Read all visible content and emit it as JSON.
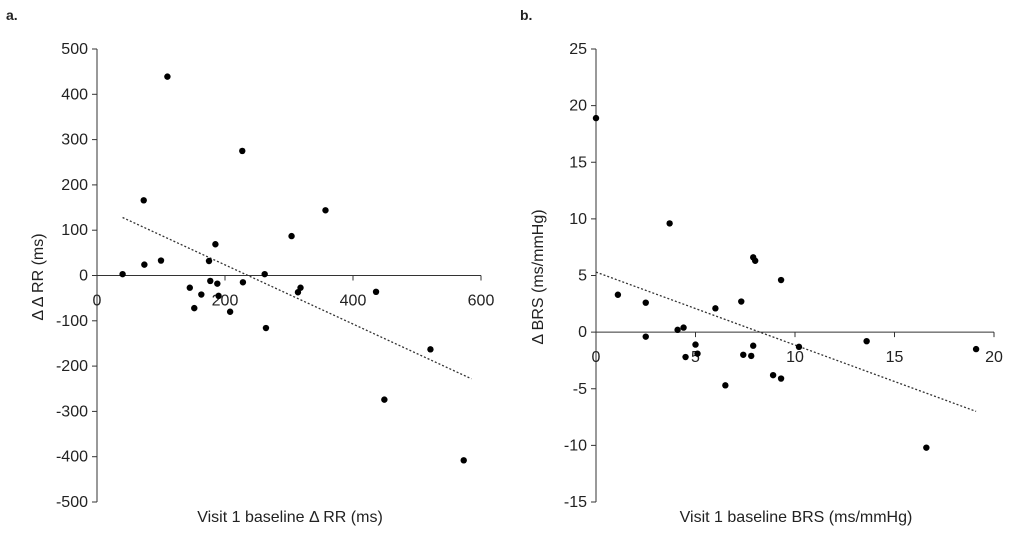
{
  "chart_data": [
    {
      "type": "scatter",
      "panel_label": "a.",
      "xlabel": "Visit 1 baseline Δ RR (ms)",
      "ylabel": "Δ Δ RR (ms)",
      "xlim": [
        0,
        600
      ],
      "ylim": [
        -500,
        500
      ],
      "xticks": [
        0,
        200,
        400,
        600
      ],
      "yticks": [
        500,
        400,
        300,
        200,
        100,
        0,
        -100,
        -200,
        -300,
        -400,
        -500
      ],
      "trendline": {
        "x": [
          40,
          585
        ],
        "y": [
          128,
          -228
        ]
      },
      "points": [
        {
          "x": 40,
          "y": 3
        },
        {
          "x": 73,
          "y": 166
        },
        {
          "x": 74,
          "y": 24
        },
        {
          "x": 100,
          "y": 33
        },
        {
          "x": 110,
          "y": 439
        },
        {
          "x": 145,
          "y": -27
        },
        {
          "x": 152,
          "y": -72
        },
        {
          "x": 163,
          "y": -42
        },
        {
          "x": 175,
          "y": 32
        },
        {
          "x": 177,
          "y": -12
        },
        {
          "x": 185,
          "y": 69
        },
        {
          "x": 188,
          "y": -18
        },
        {
          "x": 190,
          "y": -45
        },
        {
          "x": 208,
          "y": -80
        },
        {
          "x": 227,
          "y": 275
        },
        {
          "x": 228,
          "y": -15
        },
        {
          "x": 262,
          "y": 3
        },
        {
          "x": 264,
          "y": -116
        },
        {
          "x": 304,
          "y": 87
        },
        {
          "x": 314,
          "y": -37
        },
        {
          "x": 318,
          "y": -27
        },
        {
          "x": 357,
          "y": 144
        },
        {
          "x": 436,
          "y": -36
        },
        {
          "x": 449,
          "y": -274
        },
        {
          "x": 521,
          "y": -163
        },
        {
          "x": 573,
          "y": -408
        }
      ]
    },
    {
      "type": "scatter",
      "panel_label": "b.",
      "xlabel": "Visit 1 baseline BRS (ms/mmHg)",
      "ylabel": "Δ BRS (ms/mmHg)",
      "xlim": [
        0,
        20
      ],
      "ylim": [
        -15,
        25
      ],
      "xticks": [
        0,
        5,
        10,
        15,
        20
      ],
      "yticks": [
        25,
        20,
        15,
        10,
        5,
        0,
        -5,
        -10,
        -15
      ],
      "trendline": {
        "x": [
          0,
          19.1
        ],
        "y": [
          5.3,
          -7.0
        ]
      },
      "points": [
        {
          "x": 0.0,
          "y": 18.9
        },
        {
          "x": 1.1,
          "y": 3.3
        },
        {
          "x": 2.5,
          "y": 2.6
        },
        {
          "x": 2.5,
          "y": -0.4
        },
        {
          "x": 3.7,
          "y": 9.6
        },
        {
          "x": 4.1,
          "y": 0.2
        },
        {
          "x": 4.4,
          "y": 0.4
        },
        {
          "x": 4.5,
          "y": -2.2
        },
        {
          "x": 5.0,
          "y": -1.1
        },
        {
          "x": 5.1,
          "y": -1.9
        },
        {
          "x": 6.0,
          "y": 2.1
        },
        {
          "x": 6.5,
          "y": -4.7
        },
        {
          "x": 7.3,
          "y": 2.7
        },
        {
          "x": 7.4,
          "y": -2.0
        },
        {
          "x": 7.8,
          "y": -2.1
        },
        {
          "x": 7.9,
          "y": 6.6
        },
        {
          "x": 7.9,
          "y": -1.2
        },
        {
          "x": 8.0,
          "y": 6.3
        },
        {
          "x": 8.9,
          "y": -3.8
        },
        {
          "x": 9.3,
          "y": 4.6
        },
        {
          "x": 9.3,
          "y": -4.1
        },
        {
          "x": 10.2,
          "y": -1.3
        },
        {
          "x": 13.6,
          "y": -0.8
        },
        {
          "x": 16.6,
          "y": -10.2
        },
        {
          "x": 19.1,
          "y": -1.5
        }
      ]
    }
  ]
}
